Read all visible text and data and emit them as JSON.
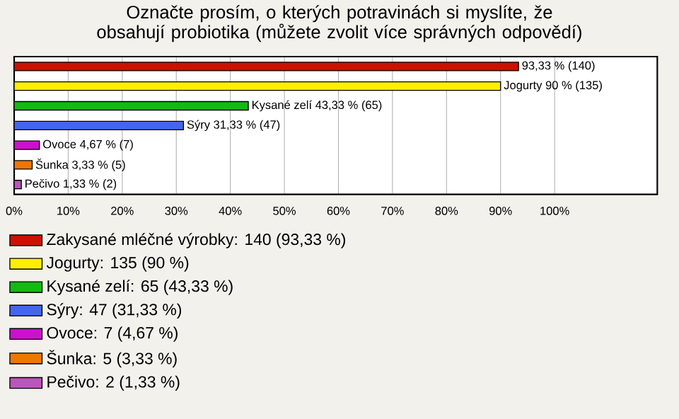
{
  "chart_data": {
    "type": "bar",
    "orientation": "horizontal",
    "title": "Označte prosím, o kterých potravinách si myslíte, že obsahují probiotika (můžete zvolit více správných odpovědí)",
    "categories": [
      null,
      null,
      null,
      null,
      null,
      null,
      null
    ],
    "series": [
      {
        "name": "Zakysané mléčné výrobky: 140 (93,33 %)",
        "color": "#cc1100",
        "values": [
          93.33,
          null,
          null,
          null,
          null,
          null,
          null
        ],
        "value_labels": [
          "93,33 % (140)",
          null,
          null,
          null,
          null,
          null,
          null
        ]
      },
      {
        "name": "Jogurty: 135 (90 %)",
        "color": "#ffee00",
        "values": [
          null,
          90,
          null,
          null,
          null,
          null,
          null
        ],
        "value_labels": [
          null,
          "Jogurty 90 % (135)",
          null,
          null,
          null,
          null,
          null
        ]
      },
      {
        "name": "Kysané zelí: 65 (43,33 %)",
        "color": "#11bb11",
        "values": [
          null,
          null,
          43.33,
          null,
          null,
          null,
          null
        ],
        "value_labels": [
          null,
          null,
          "Kysané zelí 43,33 % (65)",
          null,
          null,
          null,
          null
        ]
      },
      {
        "name": "Sýry: 47 (31,33 %)",
        "color": "#4466ee",
        "values": [
          null,
          null,
          null,
          31.33,
          null,
          null,
          null
        ],
        "value_labels": [
          null,
          null,
          null,
          "Sýry 31,33 % (47)",
          null,
          null,
          null
        ]
      },
      {
        "name": "Ovoce: 7 (4,67 %)",
        "color": "#cc11cc",
        "values": [
          null,
          null,
          null,
          null,
          4.67,
          null,
          null
        ],
        "value_labels": [
          null,
          null,
          null,
          null,
          "Ovoce 4,67 % (7)",
          null,
          null
        ]
      },
      {
        "name": "Šunka: 5 (3,33 %)",
        "color": "#ee7700",
        "values": [
          null,
          null,
          null,
          null,
          null,
          3.33,
          null
        ],
        "value_labels": [
          null,
          null,
          null,
          null,
          null,
          "Šunka 3,33 % (5)",
          null
        ]
      },
      {
        "name": "Pečivo: 2 (1,33 %)",
        "color": "#bb55bb",
        "values": [
          null,
          null,
          null,
          null,
          null,
          null,
          1.33
        ],
        "value_labels": [
          null,
          null,
          null,
          null,
          null,
          null,
          "Pečivo 1,33 % (2)"
        ]
      }
    ],
    "xlim": [
      0,
      119
    ],
    "xticks": [
      {
        "value": 0,
        "label": "0%"
      },
      {
        "value": 10,
        "label": "10%"
      },
      {
        "value": 20,
        "label": "20%"
      },
      {
        "value": 30,
        "label": "30%"
      },
      {
        "value": 40,
        "label": "40%"
      },
      {
        "value": 50,
        "label": "50%"
      },
      {
        "value": 60,
        "label": "60%"
      },
      {
        "value": 70,
        "label": "70%"
      },
      {
        "value": 80,
        "label": "80%"
      },
      {
        "value": 90,
        "label": "90%"
      },
      {
        "value": 100,
        "label": "100%"
      }
    ],
    "grid": "x",
    "legend": "bottom",
    "tick_labels": "x"
  }
}
